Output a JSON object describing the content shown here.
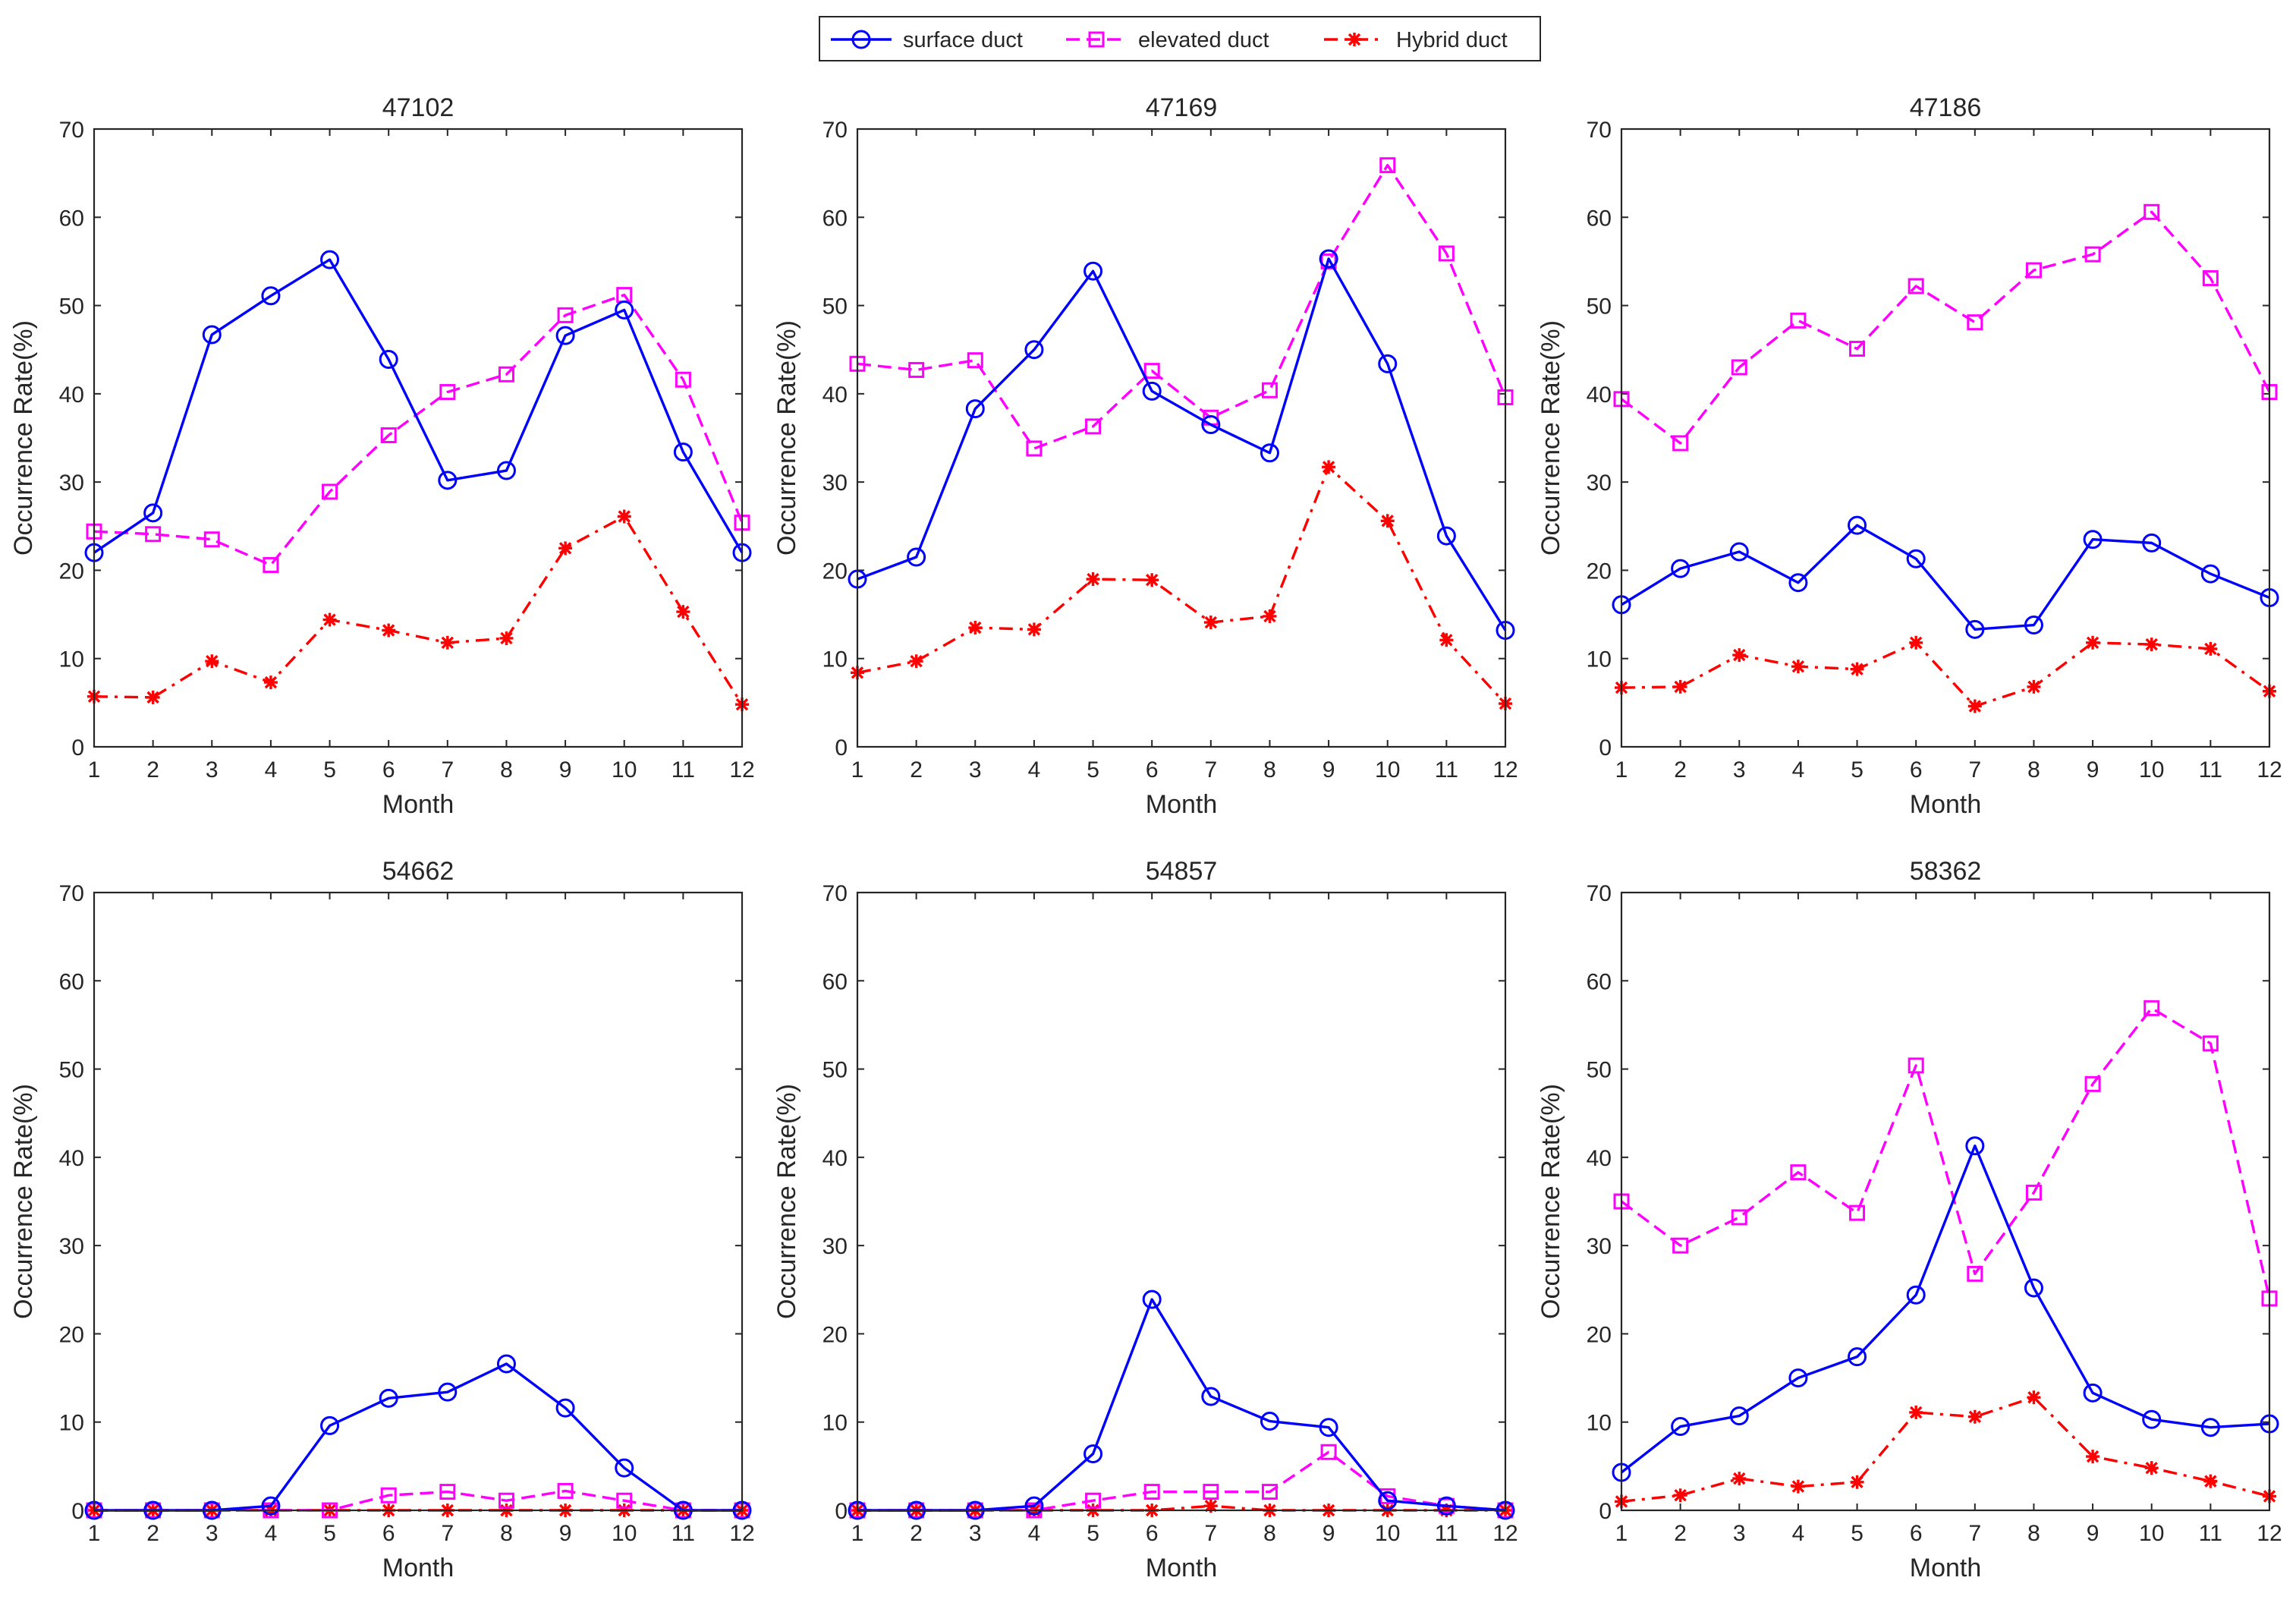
{
  "figure": {
    "legend": {
      "placement": "top-center",
      "entries": [
        {
          "label": "surface duct",
          "color": "#0000ff",
          "line": "solid",
          "marker": "circle"
        },
        {
          "label": "elevated duct",
          "color": "#ff00ff",
          "line": "dashed",
          "marker": "square"
        },
        {
          "label": "Hybrid duct",
          "color": "#ff0000",
          "line": "dashdot",
          "marker": "asterisk"
        }
      ]
    }
  },
  "chart_data": [
    {
      "type": "line",
      "title": "47102",
      "xlabel": "Month",
      "ylabel": "Occurrence Rate(%)",
      "x": [
        1,
        2,
        3,
        4,
        5,
        6,
        7,
        8,
        9,
        10,
        11,
        12
      ],
      "xlim": [
        1,
        12
      ],
      "ylim": [
        0,
        70
      ],
      "yticks": [
        0,
        10,
        20,
        30,
        40,
        50,
        60,
        70
      ],
      "grid": false,
      "series": [
        {
          "name": "surface duct",
          "values": [
            22.0,
            26.5,
            46.7,
            51.1,
            55.2,
            43.9,
            30.2,
            31.3,
            46.6,
            49.5,
            33.4,
            22.0
          ]
        },
        {
          "name": "elevated duct",
          "values": [
            24.4,
            24.1,
            23.5,
            20.6,
            28.9,
            35.3,
            40.2,
            42.2,
            48.9,
            51.2,
            41.6,
            25.4
          ]
        },
        {
          "name": "Hybrid duct",
          "values": [
            5.7,
            5.6,
            9.7,
            7.3,
            14.4,
            13.2,
            11.8,
            12.3,
            22.5,
            26.1,
            15.3,
            4.8
          ]
        }
      ]
    },
    {
      "type": "line",
      "title": "47169",
      "xlabel": "Month",
      "ylabel": "Occurrence Rate(%)",
      "x": [
        1,
        2,
        3,
        4,
        5,
        6,
        7,
        8,
        9,
        10,
        11,
        12
      ],
      "xlim": [
        1,
        12
      ],
      "ylim": [
        0,
        70
      ],
      "yticks": [
        0,
        10,
        20,
        30,
        40,
        50,
        60,
        70
      ],
      "grid": false,
      "series": [
        {
          "name": "surface duct",
          "values": [
            19.0,
            21.5,
            38.3,
            45.0,
            53.9,
            40.3,
            36.5,
            33.3,
            55.3,
            43.4,
            23.9,
            13.2
          ]
        },
        {
          "name": "elevated duct",
          "values": [
            43.4,
            42.7,
            43.8,
            33.8,
            36.3,
            42.6,
            37.3,
            40.4,
            55.0,
            65.9,
            55.9,
            39.6
          ]
        },
        {
          "name": "Hybrid duct",
          "values": [
            8.4,
            9.7,
            13.5,
            13.3,
            19.0,
            18.9,
            14.1,
            14.8,
            31.7,
            25.6,
            12.1,
            4.9
          ]
        }
      ]
    },
    {
      "type": "line",
      "title": "47186",
      "xlabel": "Month",
      "ylabel": "Occurrence Rate(%)",
      "x": [
        1,
        2,
        3,
        4,
        5,
        6,
        7,
        8,
        9,
        10,
        11,
        12
      ],
      "xlim": [
        1,
        12
      ],
      "ylim": [
        0,
        70
      ],
      "yticks": [
        0,
        10,
        20,
        30,
        40,
        50,
        60,
        70
      ],
      "grid": false,
      "series": [
        {
          "name": "surface duct",
          "values": [
            16.1,
            20.2,
            22.1,
            18.6,
            25.1,
            21.3,
            13.3,
            13.8,
            23.5,
            23.1,
            19.6,
            16.9
          ]
        },
        {
          "name": "elevated duct",
          "values": [
            39.4,
            34.4,
            43.0,
            48.3,
            45.1,
            52.2,
            48.1,
            54.0,
            55.8,
            60.6,
            53.1,
            40.2
          ]
        },
        {
          "name": "Hybrid duct",
          "values": [
            6.7,
            6.8,
            10.4,
            9.1,
            8.8,
            11.8,
            4.6,
            6.8,
            11.8,
            11.6,
            11.1,
            6.3
          ]
        }
      ]
    },
    {
      "type": "line",
      "title": "54662",
      "xlabel": "Month",
      "ylabel": "Occurrence Rate(%)",
      "x": [
        1,
        2,
        3,
        4,
        5,
        6,
        7,
        8,
        9,
        10,
        11,
        12
      ],
      "xlim": [
        1,
        12
      ],
      "ylim": [
        0,
        70
      ],
      "yticks": [
        0,
        10,
        20,
        30,
        40,
        50,
        60,
        70
      ],
      "grid": false,
      "series": [
        {
          "name": "surface duct",
          "values": [
            0,
            0,
            0,
            0.5,
            9.6,
            12.7,
            13.4,
            16.6,
            11.6,
            4.8,
            0,
            0
          ]
        },
        {
          "name": "elevated duct",
          "values": [
            0,
            0,
            0,
            0,
            0,
            1.7,
            2.1,
            1.1,
            2.2,
            1.1,
            0,
            0
          ]
        },
        {
          "name": "Hybrid duct",
          "values": [
            0,
            0,
            0,
            0,
            0,
            0,
            0,
            0,
            0,
            0,
            0,
            0
          ]
        }
      ]
    },
    {
      "type": "line",
      "title": "54857",
      "xlabel": "Month",
      "ylabel": "Occurrence Rate(%)",
      "x": [
        1,
        2,
        3,
        4,
        5,
        6,
        7,
        8,
        9,
        10,
        11,
        12
      ],
      "xlim": [
        1,
        12
      ],
      "ylim": [
        0,
        70
      ],
      "yticks": [
        0,
        10,
        20,
        30,
        40,
        50,
        60,
        70
      ],
      "grid": false,
      "series": [
        {
          "name": "surface duct",
          "values": [
            0,
            0,
            0,
            0.5,
            6.4,
            23.9,
            12.9,
            10.1,
            9.4,
            1.1,
            0.5,
            0
          ]
        },
        {
          "name": "elevated duct",
          "values": [
            0,
            0,
            0,
            0,
            1.1,
            2.1,
            2.1,
            2.1,
            6.6,
            1.6,
            0.5,
            0
          ]
        },
        {
          "name": "Hybrid duct",
          "values": [
            0,
            0,
            0,
            0,
            0,
            0,
            0.5,
            0,
            0,
            0,
            0,
            0
          ]
        }
      ]
    },
    {
      "type": "line",
      "title": "58362",
      "xlabel": "Month",
      "ylabel": "Occurrence Rate(%)",
      "x": [
        1,
        2,
        3,
        4,
        5,
        6,
        7,
        8,
        9,
        10,
        11,
        12
      ],
      "xlim": [
        1,
        12
      ],
      "ylim": [
        0,
        70
      ],
      "yticks": [
        0,
        10,
        20,
        30,
        40,
        50,
        60,
        70
      ],
      "grid": false,
      "series": [
        {
          "name": "surface duct",
          "values": [
            4.3,
            9.5,
            10.7,
            15.0,
            17.4,
            24.4,
            41.3,
            25.2,
            13.3,
            10.3,
            9.4,
            9.8
          ]
        },
        {
          "name": "elevated duct",
          "values": [
            35.0,
            30.0,
            33.2,
            38.3,
            33.7,
            50.4,
            26.8,
            36.0,
            48.3,
            56.9,
            52.9,
            24.0
          ]
        },
        {
          "name": "Hybrid duct",
          "values": [
            1.0,
            1.7,
            3.6,
            2.7,
            3.2,
            11.1,
            10.6,
            12.8,
            6.1,
            4.8,
            3.3,
            1.6
          ]
        }
      ]
    }
  ]
}
